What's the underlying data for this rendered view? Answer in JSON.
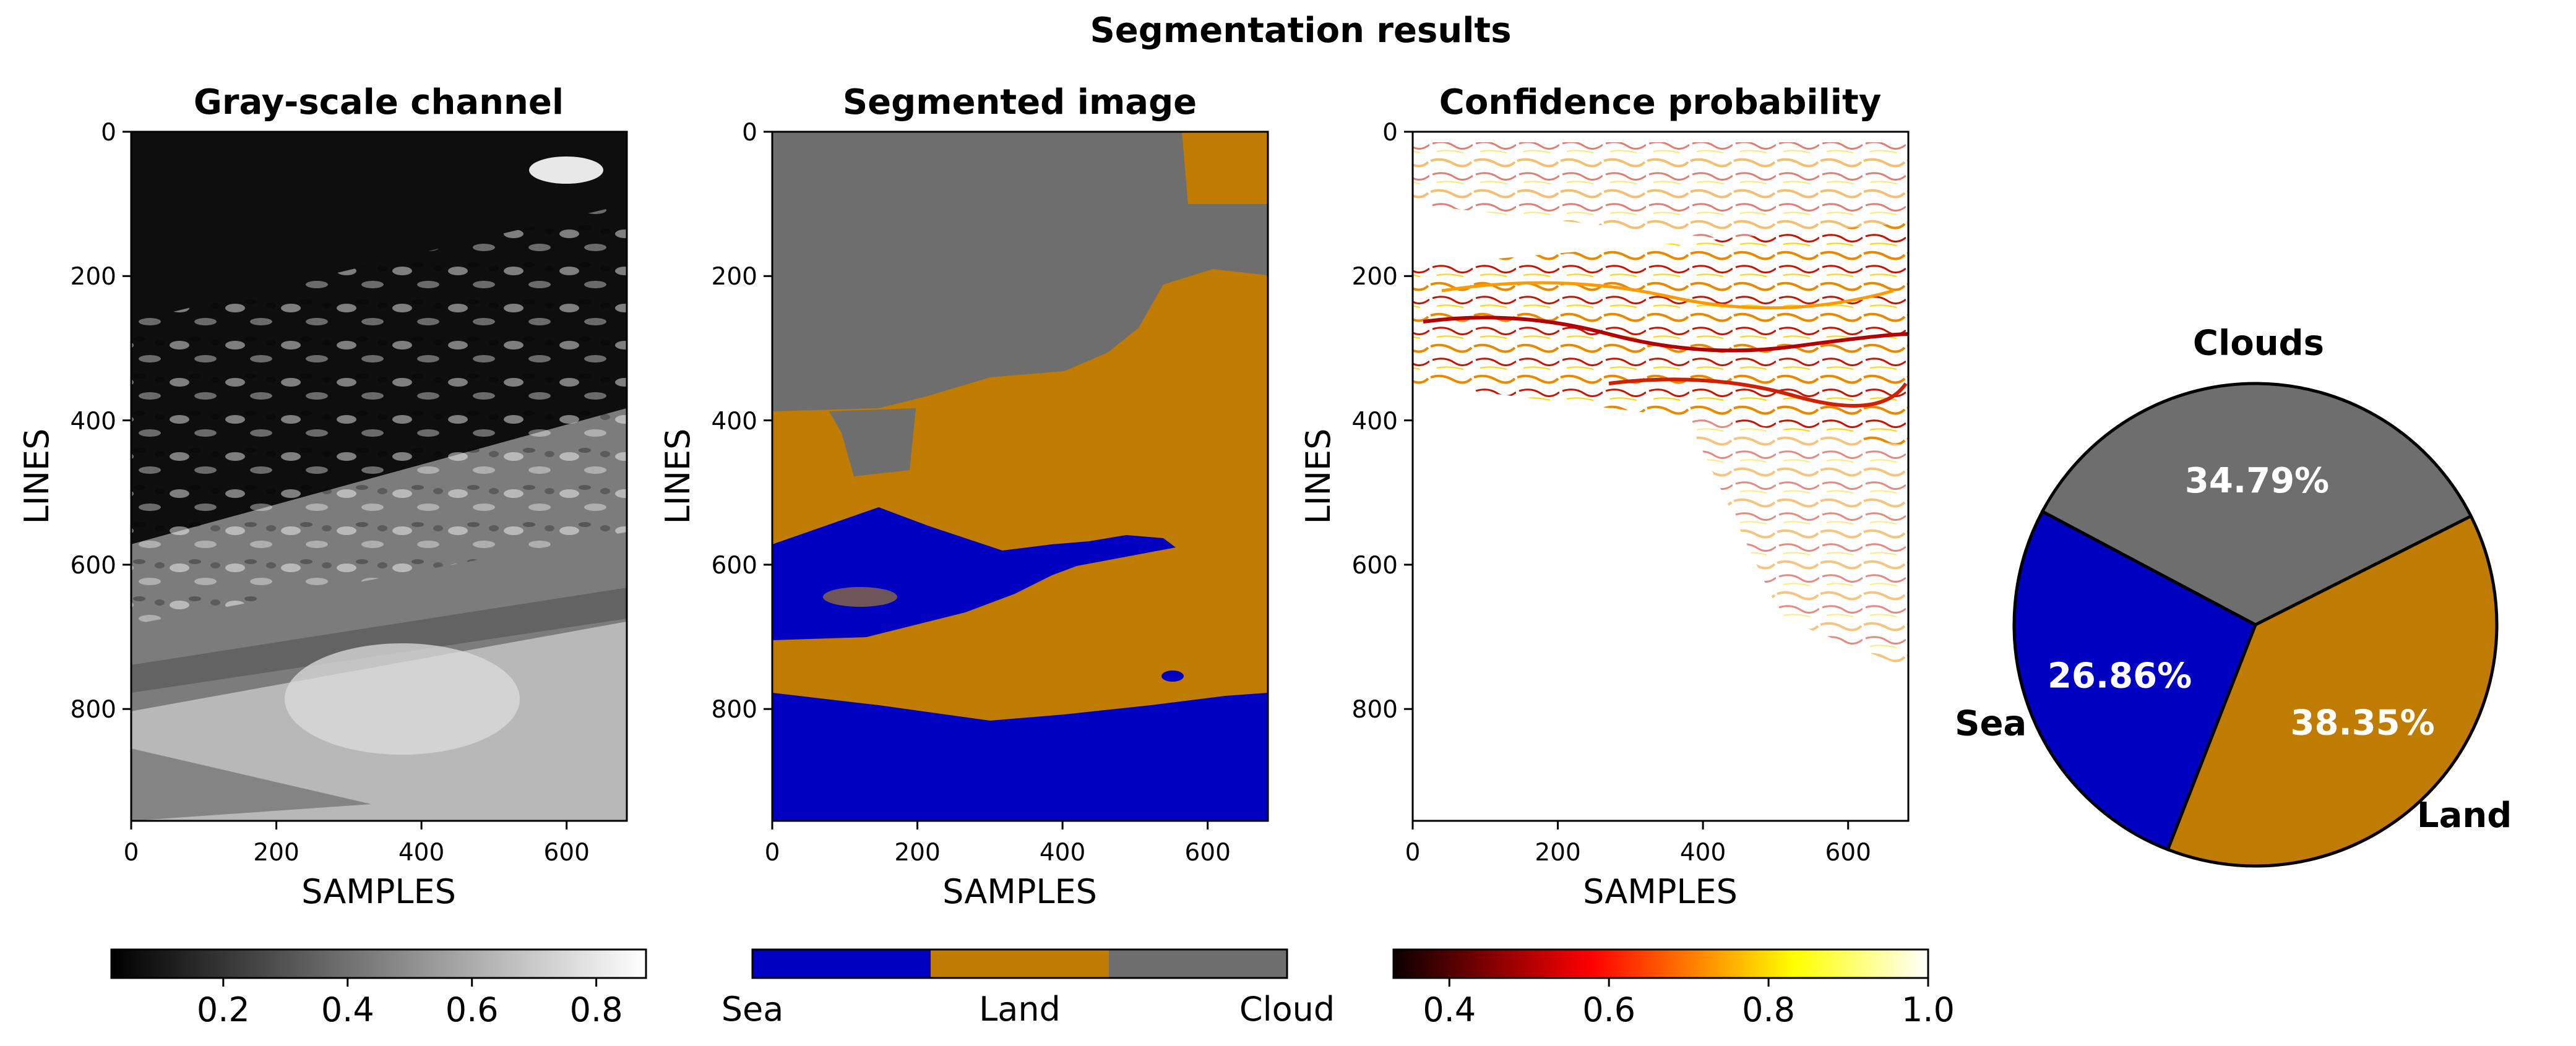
{
  "figure_title": "Segmentation results",
  "panels": [
    {
      "title": "Gray-scale channel",
      "xlabel": "SAMPLES",
      "ylabel": "LINES"
    },
    {
      "title": "Segmented image",
      "xlabel": "SAMPLES",
      "ylabel": "LINES"
    },
    {
      "title": "Confidence probability",
      "xlabel": "SAMPLES",
      "ylabel": "LINES"
    }
  ],
  "colorbars": [
    {
      "ticks": [
        "0.2",
        "0.4",
        "0.6",
        "0.8"
      ],
      "tick_values": [
        0.2,
        0.4,
        0.6,
        0.8
      ],
      "range": [
        0.02,
        0.88
      ]
    },
    {
      "ticks": [
        "Sea",
        "Land",
        "Cloud"
      ]
    },
    {
      "ticks": [
        "0.4",
        "0.6",
        "0.8",
        "1.0"
      ],
      "tick_values": [
        0.4,
        0.6,
        0.8,
        1.0
      ],
      "range": [
        0.33,
        1.0
      ]
    }
  ],
  "colors": {
    "sea": "#0000c0",
    "land": "#c07c00",
    "clouds": "#6e6e6e"
  },
  "chart_data": [
    {
      "type": "heatmap",
      "title": "Gray-scale channel",
      "xlabel": "SAMPLES",
      "ylabel": "LINES",
      "xlim": [
        0,
        683
      ],
      "ylim": [
        955,
        0
      ],
      "xticks": [
        "0",
        "200",
        "400",
        "600"
      ],
      "xtick_values": [
        0,
        200,
        400,
        600
      ],
      "yticks": [
        "0",
        "200",
        "400",
        "600",
        "800"
      ],
      "ytick_values": [
        0,
        200,
        400,
        600,
        800
      ],
      "colormap": "gray",
      "value_range": [
        0.02,
        0.88
      ]
    },
    {
      "type": "heatmap",
      "title": "Segmented image",
      "xlabel": "SAMPLES",
      "ylabel": "LINES",
      "xlim": [
        0,
        683
      ],
      "ylim": [
        955,
        0
      ],
      "xticks": [
        "0",
        "200",
        "400",
        "600"
      ],
      "xtick_values": [
        0,
        200,
        400,
        600
      ],
      "yticks": [
        "0",
        "200",
        "400",
        "600",
        "800"
      ],
      "ytick_values": [
        0,
        200,
        400,
        600,
        800
      ],
      "classes": [
        "Sea",
        "Land",
        "Cloud"
      ]
    },
    {
      "type": "heatmap",
      "title": "Confidence probability",
      "xlabel": "SAMPLES",
      "ylabel": "LINES",
      "xlim": [
        0,
        683
      ],
      "ylim": [
        955,
        0
      ],
      "xticks": [
        "0",
        "200",
        "400",
        "600"
      ],
      "xtick_values": [
        0,
        200,
        400,
        600
      ],
      "yticks": [
        "0",
        "200",
        "400",
        "600",
        "800"
      ],
      "ytick_values": [
        0,
        200,
        400,
        600,
        800
      ],
      "colormap": "hot",
      "value_range": [
        0.33,
        1.0
      ]
    },
    {
      "type": "pie",
      "labels": [
        "Clouds",
        "Land",
        "Sea"
      ],
      "values": [
        34.79,
        38.35,
        26.86
      ],
      "value_labels": [
        "34.79%",
        "38.35%",
        "26.86%"
      ],
      "colors": [
        "#6e6e6e",
        "#c07c00",
        "#0000c0"
      ]
    }
  ]
}
